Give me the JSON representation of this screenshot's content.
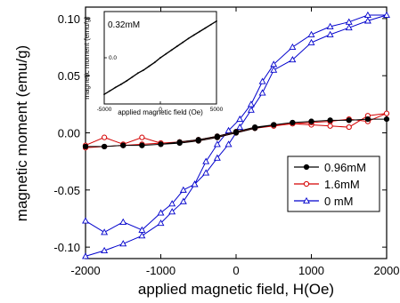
{
  "chart_data": [
    {
      "type": "line",
      "title": "",
      "xlabel": "applied magnetic field, H(Oe)",
      "ylabel": "magnetic moment (emu/g)",
      "xlim": [
        -2000,
        2000
      ],
      "ylim": [
        -0.11,
        0.11
      ],
      "xticks": [
        "-2000",
        "-1000",
        "0",
        "1000",
        "2000"
      ],
      "yticks": [
        "-0.10",
        "-0.05",
        "0.00",
        "0.05",
        "0.10"
      ],
      "grid": false,
      "legend_position": "bottom-right",
      "series": [
        {
          "name": "0.96mM",
          "color": "#000000",
          "marker": "filled-circle",
          "x": [
            -2000,
            -1750,
            -1500,
            -1250,
            -1000,
            -750,
            -500,
            -250,
            0,
            250,
            500,
            750,
            1000,
            1250,
            1500,
            1750,
            2000,
            1750,
            1500,
            1250,
            1000,
            750,
            500,
            250,
            0,
            -250,
            -500,
            -750,
            -1000,
            -1250,
            -1500,
            -1750,
            -2000
          ],
          "y": [
            -0.012,
            -0.012,
            -0.011,
            -0.011,
            -0.01,
            -0.009,
            -0.007,
            -0.004,
            0.0,
            0.004,
            0.007,
            0.009,
            0.01,
            0.011,
            0.011,
            0.012,
            0.012,
            0.012,
            0.011,
            0.011,
            0.01,
            0.009,
            0.007,
            0.005,
            0.001,
            -0.003,
            -0.006,
            -0.008,
            -0.01,
            -0.011,
            -0.011,
            -0.012,
            -0.012
          ]
        },
        {
          "name": "1.6mM",
          "color": "#d40000",
          "marker": "open-circle",
          "x": [
            -2000,
            -1750,
            -1500,
            -1250,
            -1000,
            -750,
            -500,
            -250,
            0,
            250,
            500,
            750,
            1000,
            1250,
            1500,
            1750,
            2000,
            1750,
            1500,
            1250,
            1000,
            750,
            500,
            250,
            0,
            -250,
            -500,
            -750,
            -1000,
            -1250,
            -1500,
            -1750,
            -2000
          ],
          "y": [
            -0.011,
            -0.004,
            -0.01,
            -0.004,
            -0.009,
            -0.008,
            -0.007,
            -0.004,
            0.0,
            0.004,
            0.007,
            0.008,
            0.007,
            0.006,
            0.005,
            0.015,
            0.017,
            0.01,
            0.012,
            0.01,
            0.009,
            0.008,
            0.006,
            0.004,
            0.001,
            -0.003,
            -0.006,
            -0.008,
            -0.009,
            -0.01,
            -0.011,
            -0.012,
            -0.013
          ]
        },
        {
          "name": "0 mM",
          "color": "#0000cc",
          "marker": "open-triangle",
          "x": [
            -2000,
            -1750,
            -1500,
            -1250,
            -1000,
            -850,
            -700,
            -550,
            -400,
            -250,
            -100,
            50,
            200,
            350,
            500,
            750,
            1000,
            1250,
            1500,
            1750,
            2000,
            1750,
            1500,
            1250,
            1000,
            750,
            500,
            350,
            200,
            50,
            -100,
            -250,
            -400,
            -550,
            -700,
            -850,
            -1000,
            -1250,
            -1500,
            -1750,
            -2000
          ],
          "y": [
            -0.077,
            -0.087,
            -0.078,
            -0.085,
            -0.07,
            -0.062,
            -0.05,
            -0.045,
            -0.035,
            -0.022,
            -0.01,
            0.005,
            0.02,
            0.035,
            0.055,
            0.064,
            0.079,
            0.086,
            0.092,
            0.098,
            0.103,
            0.103,
            0.097,
            0.093,
            0.086,
            0.075,
            0.06,
            0.045,
            0.025,
            0.012,
            0.002,
            -0.01,
            -0.025,
            -0.045,
            -0.06,
            -0.069,
            -0.079,
            -0.09,
            -0.097,
            -0.103,
            -0.108
          ]
        }
      ]
    },
    {
      "type": "line",
      "title": "",
      "annotation": "0.32mM",
      "xlabel": "applied magnetic field (Oe)",
      "ylabel": "magnetic moment (emu/g)",
      "xlim": [
        -5000,
        5000
      ],
      "ylim": [
        -1.2,
        1.2
      ],
      "xticks": [
        "-5000",
        "0",
        "5000"
      ],
      "yticks": [
        "0.0"
      ],
      "series": [
        {
          "color": "#000000",
          "x": [
            -5000,
            -4500,
            -4000,
            -3500,
            -3000,
            -2500,
            -2000,
            -1500,
            -1000,
            -500,
            0,
            500,
            1000,
            1500,
            2000,
            2500,
            3000,
            3500,
            4000,
            4500,
            5000
          ],
          "y": [
            -0.95,
            -0.86,
            -0.77,
            -0.69,
            -0.6,
            -0.5,
            -0.4,
            -0.32,
            -0.22,
            -0.12,
            0.0,
            0.1,
            0.2,
            0.3,
            0.4,
            0.5,
            0.59,
            0.68,
            0.77,
            0.86,
            0.95
          ]
        }
      ]
    }
  ]
}
